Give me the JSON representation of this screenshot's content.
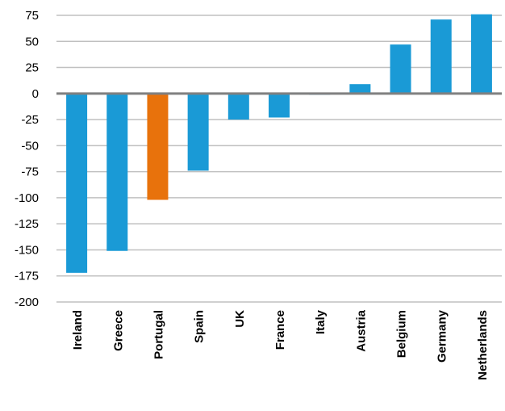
{
  "chart_data": {
    "type": "bar",
    "categories": [
      "Ireland",
      "Greece",
      "Portugal",
      "Spain",
      "UK",
      "France",
      "Italy",
      "Austria",
      "Belgium",
      "Germany",
      "Netherlands"
    ],
    "values": [
      -172,
      -151,
      -102,
      -74,
      -25,
      -23,
      -1,
      9,
      47,
      71,
      76
    ],
    "highlight": "Portugal",
    "colors": {
      "default": "#1a9ad6",
      "highlight": "#e8720c",
      "grid": "#c0c0c0",
      "zero_line": "#808080"
    },
    "ylim": [
      -200,
      75
    ],
    "yticks": [
      75,
      50,
      25,
      0,
      -25,
      -50,
      -75,
      -100,
      -125,
      -150,
      -175,
      -200
    ],
    "title": "",
    "xlabel": "",
    "ylabel": "",
    "grid": true,
    "legend": "none"
  }
}
